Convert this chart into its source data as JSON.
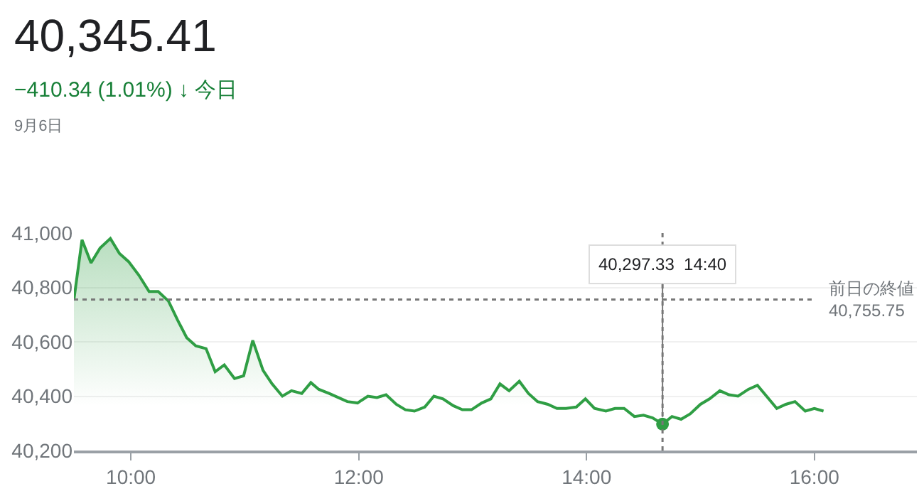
{
  "chart_data": {
    "type": "area",
    "title": "40,345.41",
    "subtitle": "−410.34 (1.01%) ↓ 今日",
    "annotations": [
      "9月6日",
      {
        "text": "40,297.33  14:40",
        "x": 14.667,
        "y": 40297.33
      }
    ],
    "x": [
      9.5,
      9.571,
      9.65,
      9.73,
      9.82,
      9.9,
      9.98,
      10.07,
      10.16,
      10.24,
      10.33,
      10.41,
      10.49,
      10.57,
      10.66,
      10.74,
      10.82,
      10.91,
      10.99,
      11.07,
      11.16,
      11.24,
      11.33,
      11.41,
      11.5,
      11.58,
      11.65,
      11.74,
      11.82,
      11.9,
      11.99,
      12.08,
      12.16,
      12.24,
      12.33,
      12.41,
      12.49,
      12.58,
      12.66,
      12.74,
      12.83,
      12.91,
      12.99,
      13.08,
      13.16,
      13.24,
      13.32,
      13.41,
      13.49,
      13.57,
      13.66,
      13.74,
      13.82,
      13.91,
      13.99,
      14.07,
      14.17,
      14.25,
      14.33,
      14.42,
      14.5,
      14.58,
      14.667,
      14.75,
      14.83,
      14.91,
      15.0,
      15.08,
      15.17,
      15.25,
      15.33,
      15.42,
      15.5,
      15.58,
      15.67,
      15.75,
      15.83,
      15.92,
      16.0,
      16.08
    ],
    "series": [
      {
        "color": "#2f9e44",
        "values": [
          40755,
          40975,
          40890,
          40945,
          40980,
          40925,
          40895,
          40845,
          40785,
          40785,
          40750,
          40680,
          40615,
          40585,
          40575,
          40490,
          40515,
          40465,
          40475,
          40605,
          40495,
          40445,
          40400,
          40420,
          40410,
          40450,
          40425,
          40410,
          40395,
          40380,
          40375,
          40400,
          40395,
          40405,
          40370,
          40350,
          40345,
          40360,
          40400,
          40390,
          40365,
          40350,
          40350,
          40375,
          40390,
          40445,
          40420,
          40455,
          40410,
          40380,
          40370,
          40355,
          40355,
          40360,
          40390,
          40355,
          40345,
          40355,
          40355,
          40325,
          40330,
          40320,
          40297.33,
          40325,
          40315,
          40335,
          40370,
          40390,
          40420,
          40405,
          40400,
          40425,
          40440,
          40400,
          40355,
          40370,
          40380,
          40345,
          40355,
          40345
        ]
      }
    ],
    "xlim": [
      9.5,
      16.9
    ],
    "xticks": [
      {
        "value": 10,
        "label": "10:00"
      },
      {
        "value": 12,
        "label": "12:00"
      },
      {
        "value": 14,
        "label": "14:00"
      },
      {
        "value": 16,
        "label": "16:00"
      }
    ],
    "ylim": [
      40200,
      41000
    ],
    "yticks": [
      {
        "value": 40200,
        "label": "40,200"
      },
      {
        "value": 40400,
        "label": "40,400"
      },
      {
        "value": 40600,
        "label": "40,600"
      },
      {
        "value": 40800,
        "label": "40,800"
      },
      {
        "value": 41000,
        "label": "41,000"
      }
    ],
    "ref_lines": [
      {
        "axis": "y",
        "value": 40755.75,
        "label": "前日の終値\n40,755.75",
        "line_style": "dotted",
        "color": "#777777"
      },
      {
        "axis": "x",
        "value": 14.667,
        "label": null,
        "line_style": "dotted",
        "color": "#777777"
      }
    ],
    "grid": "y",
    "marker": "none",
    "line_style": "solid"
  }
}
